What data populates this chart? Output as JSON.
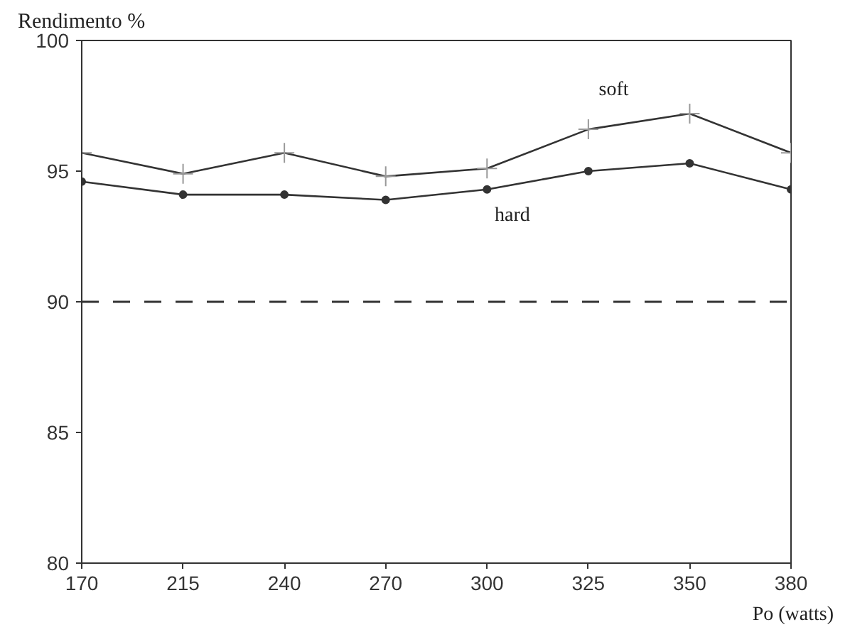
{
  "chart_data": {
    "type": "line",
    "ylabel": "Rendimento %",
    "xlabel": "Po (watts)",
    "categories": [
      "170",
      "215",
      "240",
      "270",
      "300",
      "325",
      "350",
      "380"
    ],
    "series": [
      {
        "name": "soft",
        "color": "#333333",
        "marker": "cross",
        "values": [
          95.7,
          94.9,
          95.7,
          94.8,
          95.1,
          96.6,
          97.2,
          95.7
        ]
      },
      {
        "name": "hard",
        "color": "#333333",
        "marker": "circle",
        "values": [
          94.6,
          94.1,
          94.1,
          93.9,
          94.3,
          95.0,
          95.3,
          94.3
        ]
      }
    ],
    "ylim": [
      80,
      100
    ],
    "yticks": [
      80,
      85,
      90,
      95,
      100
    ],
    "ref_lines": [
      {
        "axis": "y",
        "value": 90,
        "color": "#333333",
        "line_style": "dashed"
      }
    ],
    "grid": false
  }
}
